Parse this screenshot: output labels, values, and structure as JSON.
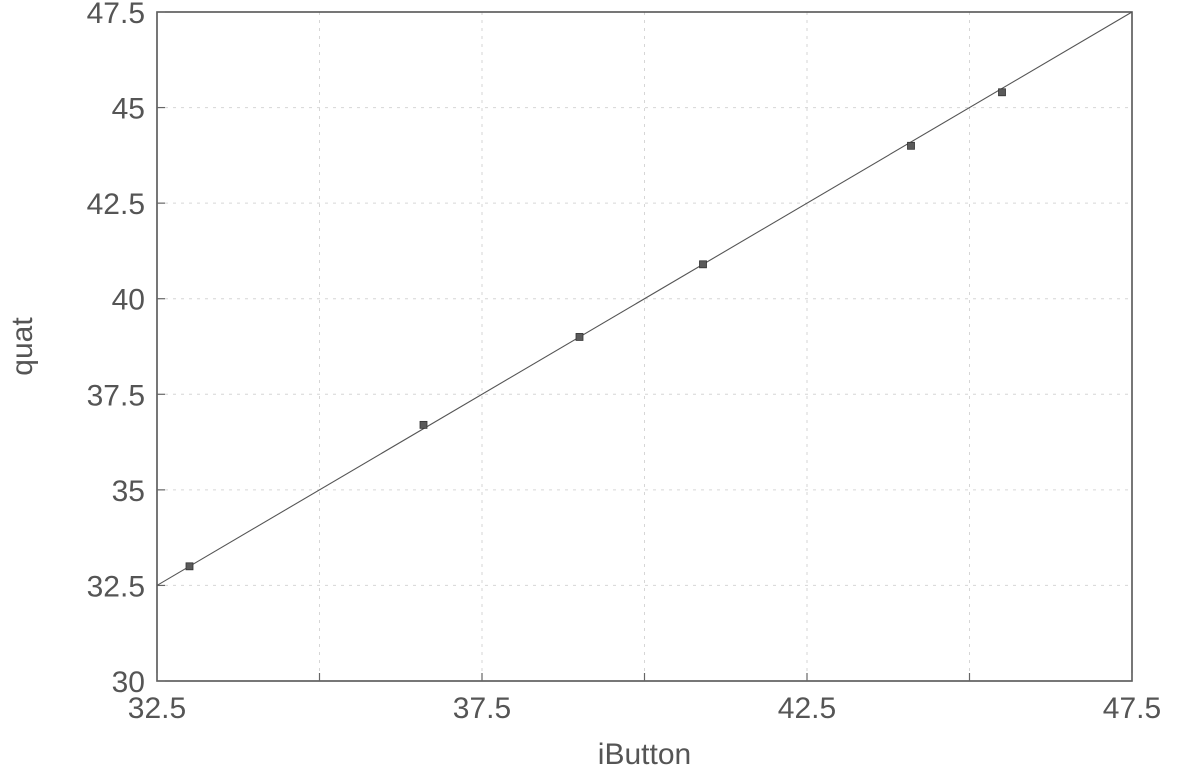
{
  "chart_data": {
    "type": "scatter",
    "title": "",
    "xlabel": "iButton",
    "ylabel": "quat",
    "xlim": [
      32.5,
      47.5
    ],
    "ylim": [
      30,
      47.5
    ],
    "xticks": [
      32.5,
      37.5,
      42.5,
      47.5
    ],
    "xticks_minor": [
      35,
      40,
      45
    ],
    "yticks": [
      30,
      32.5,
      35,
      37.5,
      40,
      42.5,
      45,
      47.5
    ],
    "x_tick_labels": [
      "32.5",
      "37.5",
      "42.5",
      "47.5"
    ],
    "y_tick_labels": [
      "30",
      "32.5",
      "35",
      "37.5",
      "40",
      "42.5",
      "45",
      "47.5"
    ],
    "grid": true,
    "series": [
      {
        "x": [
          33.0,
          36.6,
          39.0,
          40.9,
          44.1,
          45.5
        ],
        "y": [
          33.0,
          36.7,
          39.0,
          40.9,
          44.0,
          45.4
        ]
      }
    ],
    "reference_line": {
      "x": [
        32.5,
        47.5
      ],
      "y": [
        32.5,
        47.5
      ]
    },
    "colors": {
      "marker": "#5a5a5a",
      "line": "#555555",
      "text": "#555555"
    }
  }
}
